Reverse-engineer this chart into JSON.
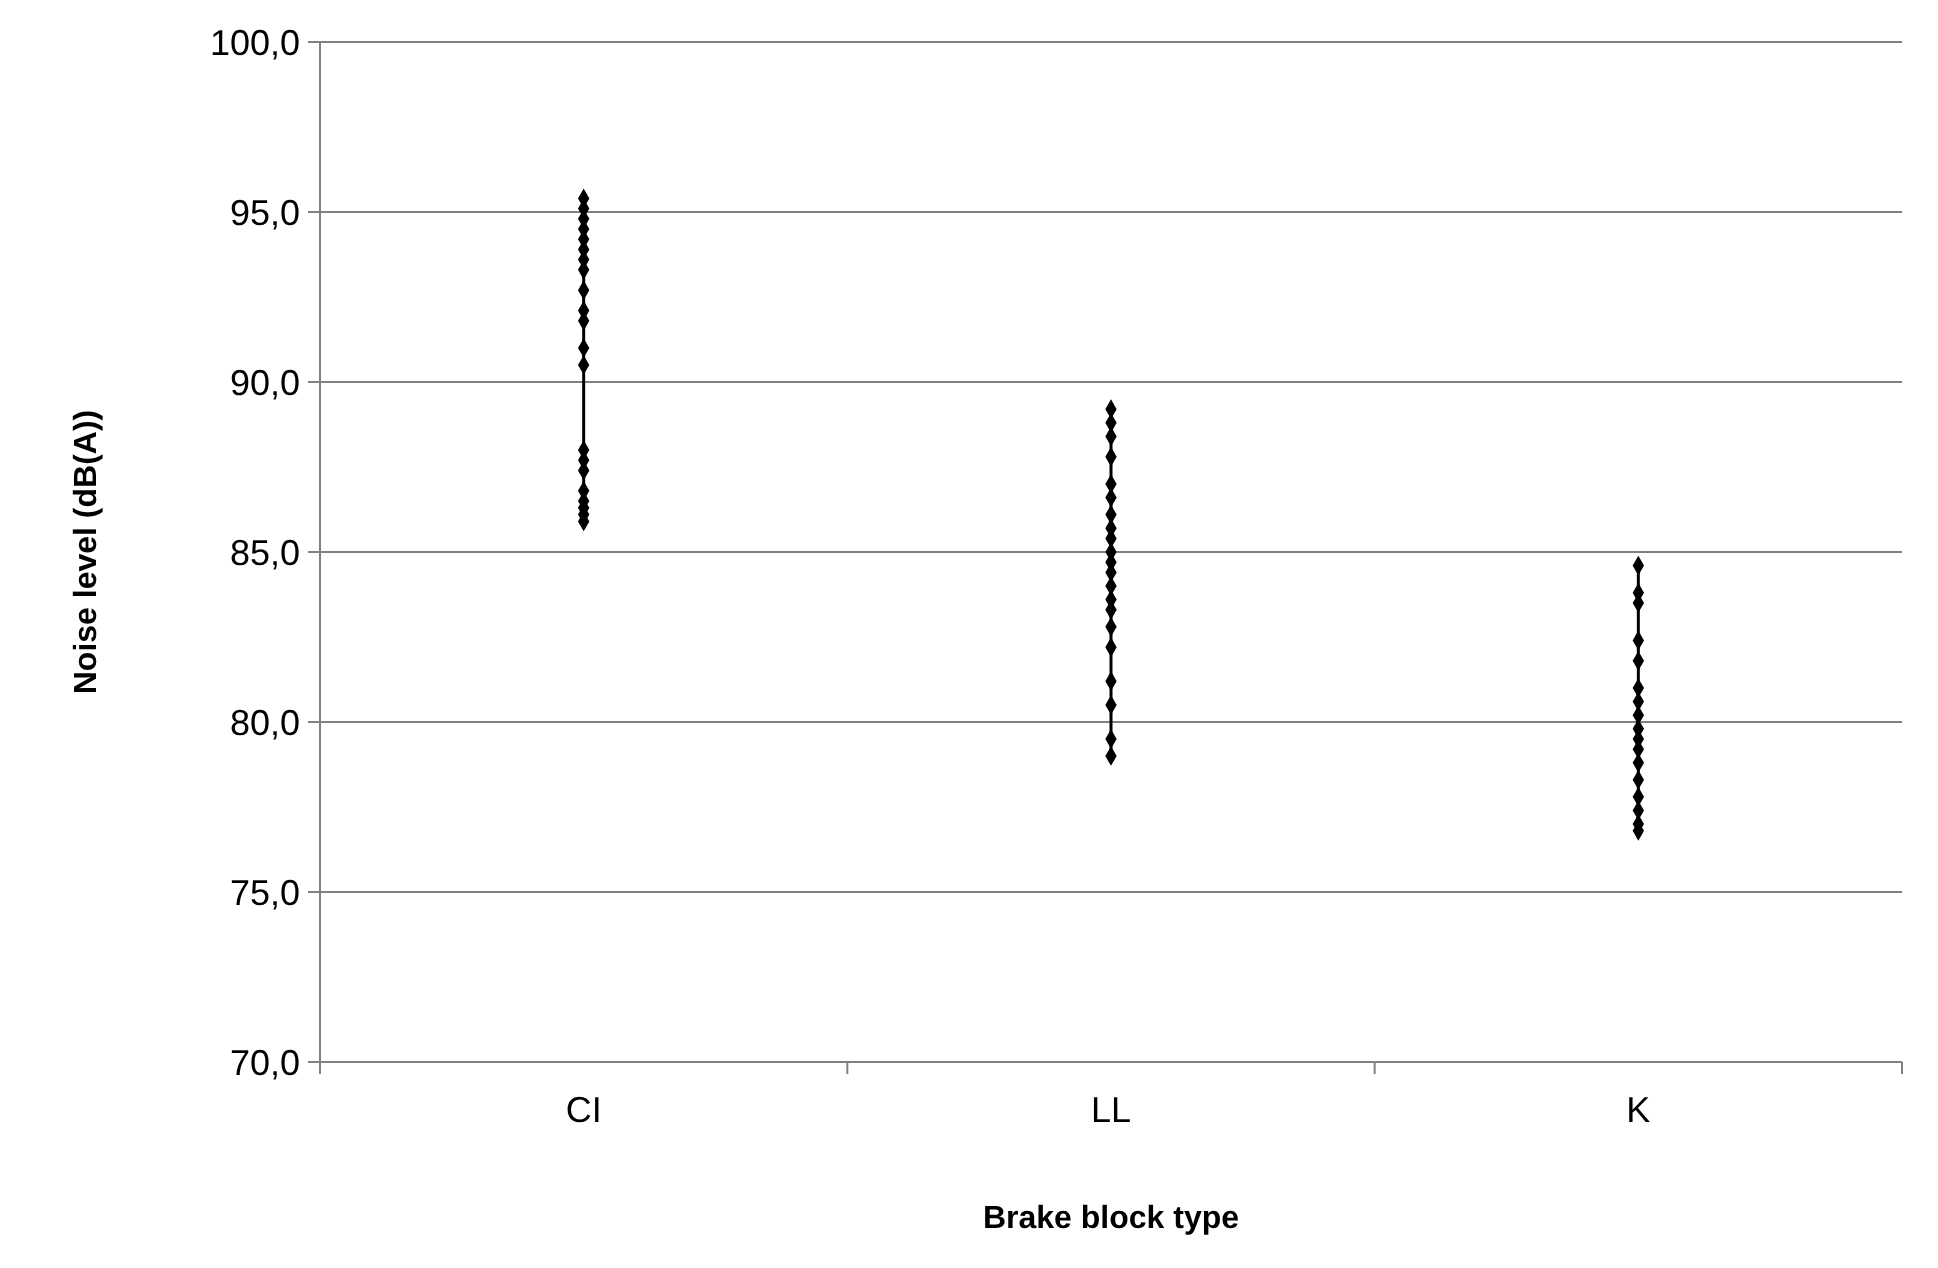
{
  "chart_data": {
    "type": "line",
    "xlabel": "Brake block type",
    "ylabel": "Noise level (dB(A))",
    "categories": [
      "CI",
      "LL",
      "K"
    ],
    "series": [
      {
        "color": "#000000",
        "x": [
          "CI",
          "CI",
          "CI",
          "CI",
          "CI",
          "CI",
          "CI",
          "CI",
          "CI",
          "CI",
          "CI",
          "CI",
          "CI",
          "CI",
          "CI",
          "CI",
          "CI",
          "CI",
          "CI",
          "CI",
          "CI"
        ],
        "values": [
          95.4,
          95.1,
          94.8,
          94.5,
          94.2,
          93.9,
          93.6,
          93.3,
          92.7,
          92.1,
          91.8,
          91.0,
          90.5,
          88.0,
          87.7,
          87.4,
          86.8,
          86.5,
          86.3,
          86.1,
          85.9
        ]
      },
      {
        "color": "#000000",
        "x": [
          "LL",
          "LL",
          "LL",
          "LL",
          "LL",
          "LL",
          "LL",
          "LL",
          "LL",
          "LL",
          "LL",
          "LL",
          "LL",
          "LL",
          "LL",
          "LL",
          "LL",
          "LL",
          "LL",
          "LL",
          "LL"
        ],
        "values": [
          89.2,
          88.8,
          88.4,
          87.8,
          87.0,
          86.6,
          86.1,
          85.7,
          85.4,
          85.0,
          84.7,
          84.4,
          84.0,
          83.6,
          83.3,
          82.8,
          82.2,
          81.2,
          80.5,
          79.5,
          79.0
        ]
      },
      {
        "color": "#000000",
        "x": [
          "K",
          "K",
          "K",
          "K",
          "K",
          "K",
          "K",
          "K",
          "K",
          "K",
          "K",
          "K",
          "K",
          "K",
          "K",
          "K",
          "K"
        ],
        "values": [
          84.6,
          83.8,
          83.5,
          82.4,
          81.8,
          81.0,
          80.6,
          80.2,
          79.8,
          79.5,
          79.2,
          78.8,
          78.3,
          77.8,
          77.4,
          77.0,
          76.8
        ]
      }
    ],
    "ylim": [
      70,
      100
    ],
    "yticks": [
      {
        "value": 70,
        "label": "70,0"
      },
      {
        "value": 75,
        "label": "75,0"
      },
      {
        "value": 80,
        "label": "80,0"
      },
      {
        "value": 85,
        "label": "85,0"
      },
      {
        "value": 90,
        "label": "90,0"
      },
      {
        "value": 95,
        "label": "95,0"
      },
      {
        "value": 100,
        "label": "100,0"
      }
    ],
    "grid": "y",
    "marker": "diamond",
    "line_style": "solid"
  }
}
